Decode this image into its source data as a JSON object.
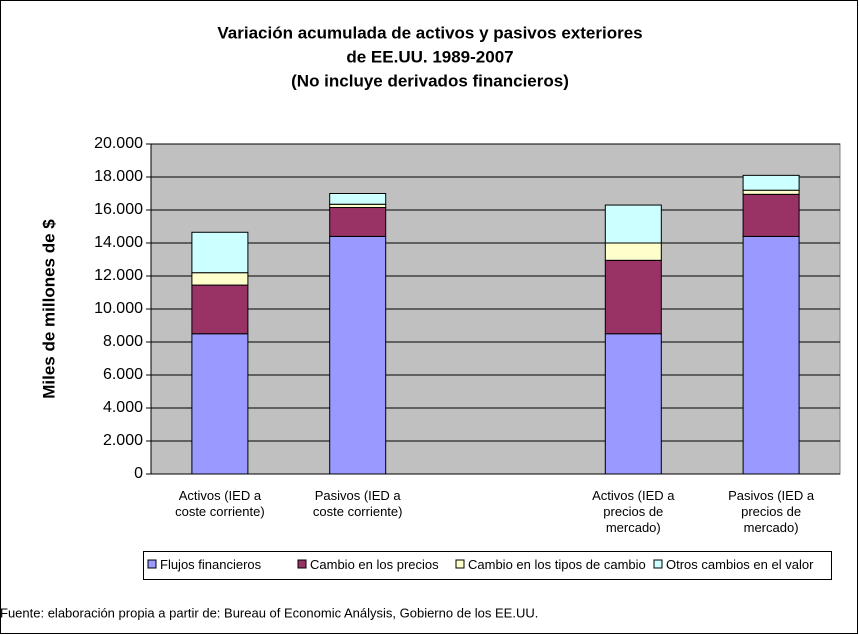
{
  "chart_data": {
    "type": "stacked_bar",
    "title": [
      "Variación acumulada de activos y pasivos exteriores",
      "de EE.UU. 1989-2007",
      "(No incluye derivados financieros)"
    ],
    "y_label": "Miles de millones de $",
    "categories": [
      "Activos (IED a coste corriente)",
      "Pasivos (IED a coste corriente)",
      null,
      "Activos (IED a precios de mercado)",
      "Pasivos (IED a precios de mercado)"
    ],
    "series": [
      {
        "name": "Flujos financieros",
        "color": "#9999ff",
        "values": [
          8500,
          14400,
          null,
          8500,
          14400
        ]
      },
      {
        "name": "Cambio en los precios",
        "color": "#993366",
        "values": [
          2950,
          1750,
          null,
          4450,
          2550
        ]
      },
      {
        "name": "Cambio en los tipos de cambio",
        "color": "#ffffcc",
        "values": [
          750,
          200,
          null,
          1050,
          250
        ]
      },
      {
        "name": "Otros cambios en el valor",
        "color": "#ccffff",
        "values": [
          2450,
          650,
          null,
          2300,
          900
        ]
      }
    ],
    "ylim": [
      0,
      20000
    ],
    "yticks": [
      0,
      {
        "value": 2000,
        "label": "2.000"
      },
      {
        "value": 4000,
        "label": "4.000"
      },
      {
        "value": 6000,
        "label": "6.000"
      },
      {
        "value": 8000,
        "label": "8.000"
      },
      {
        "value": 10000,
        "label": "10.000"
      },
      {
        "value": 12000,
        "label": "12.000"
      },
      {
        "value": 14000,
        "label": "14.000"
      },
      {
        "value": 16000,
        "label": "16.000"
      },
      {
        "value": 18000,
        "label": "18.000"
      },
      {
        "value": 20000,
        "label": "20.000"
      }
    ],
    "plot_background": "#c0c0c0",
    "source": "Fuente: elaboración propia a partir de: Bureau of Economic Análysis, Gobierno de los EE.UU."
  }
}
